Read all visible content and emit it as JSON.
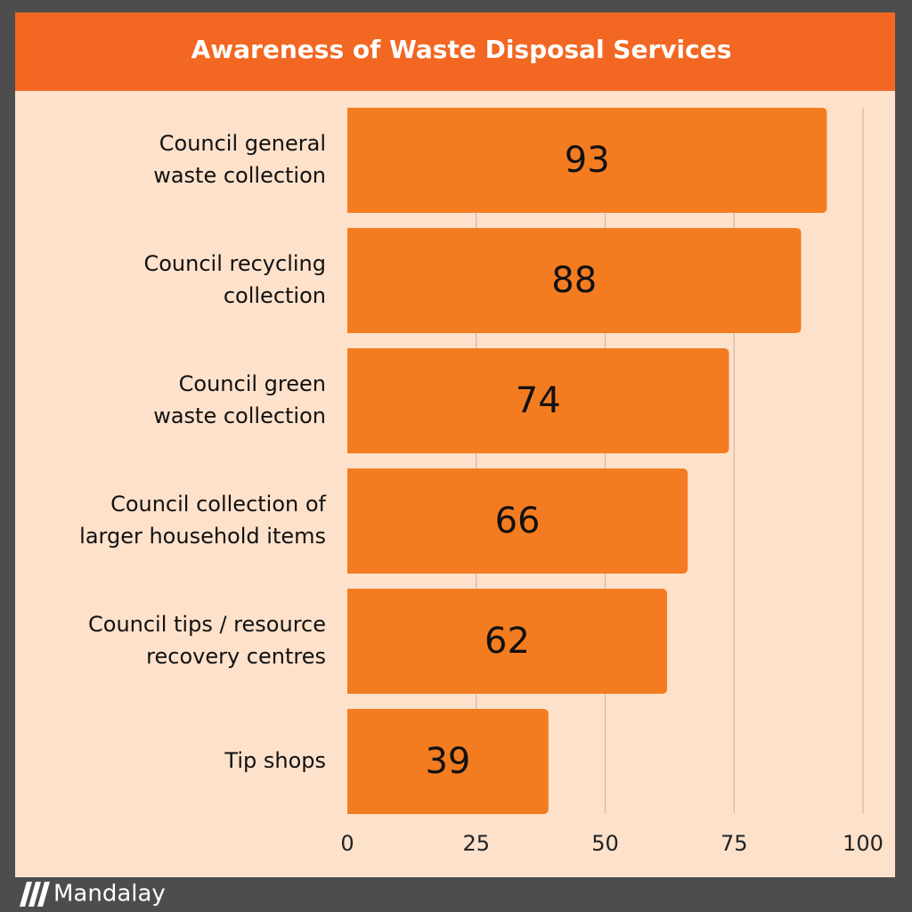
{
  "chart_data": {
    "type": "hbar",
    "title": "Awareness of Waste Disposal Services",
    "categories": [
      "Council general\nwaste collection",
      "Council recycling\ncollection",
      "Council green\nwaste collection",
      "Council collection of\nlarger household items",
      "Council tips / resource\nrecovery centres",
      "Tip shops"
    ],
    "values": [
      93,
      88,
      74,
      66,
      62,
      39
    ],
    "color": "#f47c20",
    "xlim": [
      0,
      100
    ],
    "xticks": [
      0,
      25,
      50,
      75,
      100
    ],
    "grid": true
  },
  "brand": "Mandalay"
}
